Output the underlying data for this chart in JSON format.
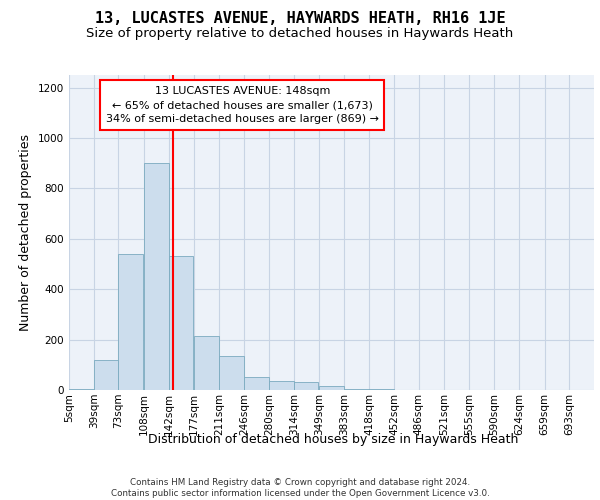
{
  "title": "13, LUCASTES AVENUE, HAYWARDS HEATH, RH16 1JE",
  "subtitle": "Size of property relative to detached houses in Haywards Heath",
  "xlabel": "Distribution of detached houses by size in Haywards Heath",
  "ylabel": "Number of detached properties",
  "bar_color": "#ccdded",
  "bar_edge_color": "#7aaabf",
  "red_line_x": 148,
  "annotation_title": "13 LUCASTES AVENUE: 148sqm",
  "annotation_line1": "← 65% of detached houses are smaller (1,673)",
  "annotation_line2": "34% of semi-detached houses are larger (869) →",
  "footer_line1": "Contains HM Land Registry data © Crown copyright and database right 2024.",
  "footer_line2": "Contains public sector information licensed under the Open Government Licence v3.0.",
  "bin_edges": [
    5,
    39,
    73,
    108,
    142,
    177,
    211,
    246,
    280,
    314,
    349,
    383,
    418,
    452,
    486,
    521,
    555,
    590,
    624,
    659,
    693
  ],
  "bar_heights": [
    5,
    120,
    540,
    900,
    530,
    215,
    135,
    50,
    35,
    30,
    15,
    5,
    5,
    0,
    0,
    0,
    0,
    0,
    0,
    0
  ],
  "ylim": [
    0,
    1250
  ],
  "yticks": [
    0,
    200,
    400,
    600,
    800,
    1000,
    1200
  ],
  "bg_color": "#edf2f9",
  "grid_color": "#c8d4e4",
  "annotation_box_color": "white",
  "annotation_box_edge": "red",
  "red_line_color": "red",
  "title_fontsize": 11,
  "subtitle_fontsize": 9.5,
  "tick_fontsize": 7.5,
  "ylabel_fontsize": 9,
  "xlabel_fontsize": 9,
  "annot_fontsize": 8
}
